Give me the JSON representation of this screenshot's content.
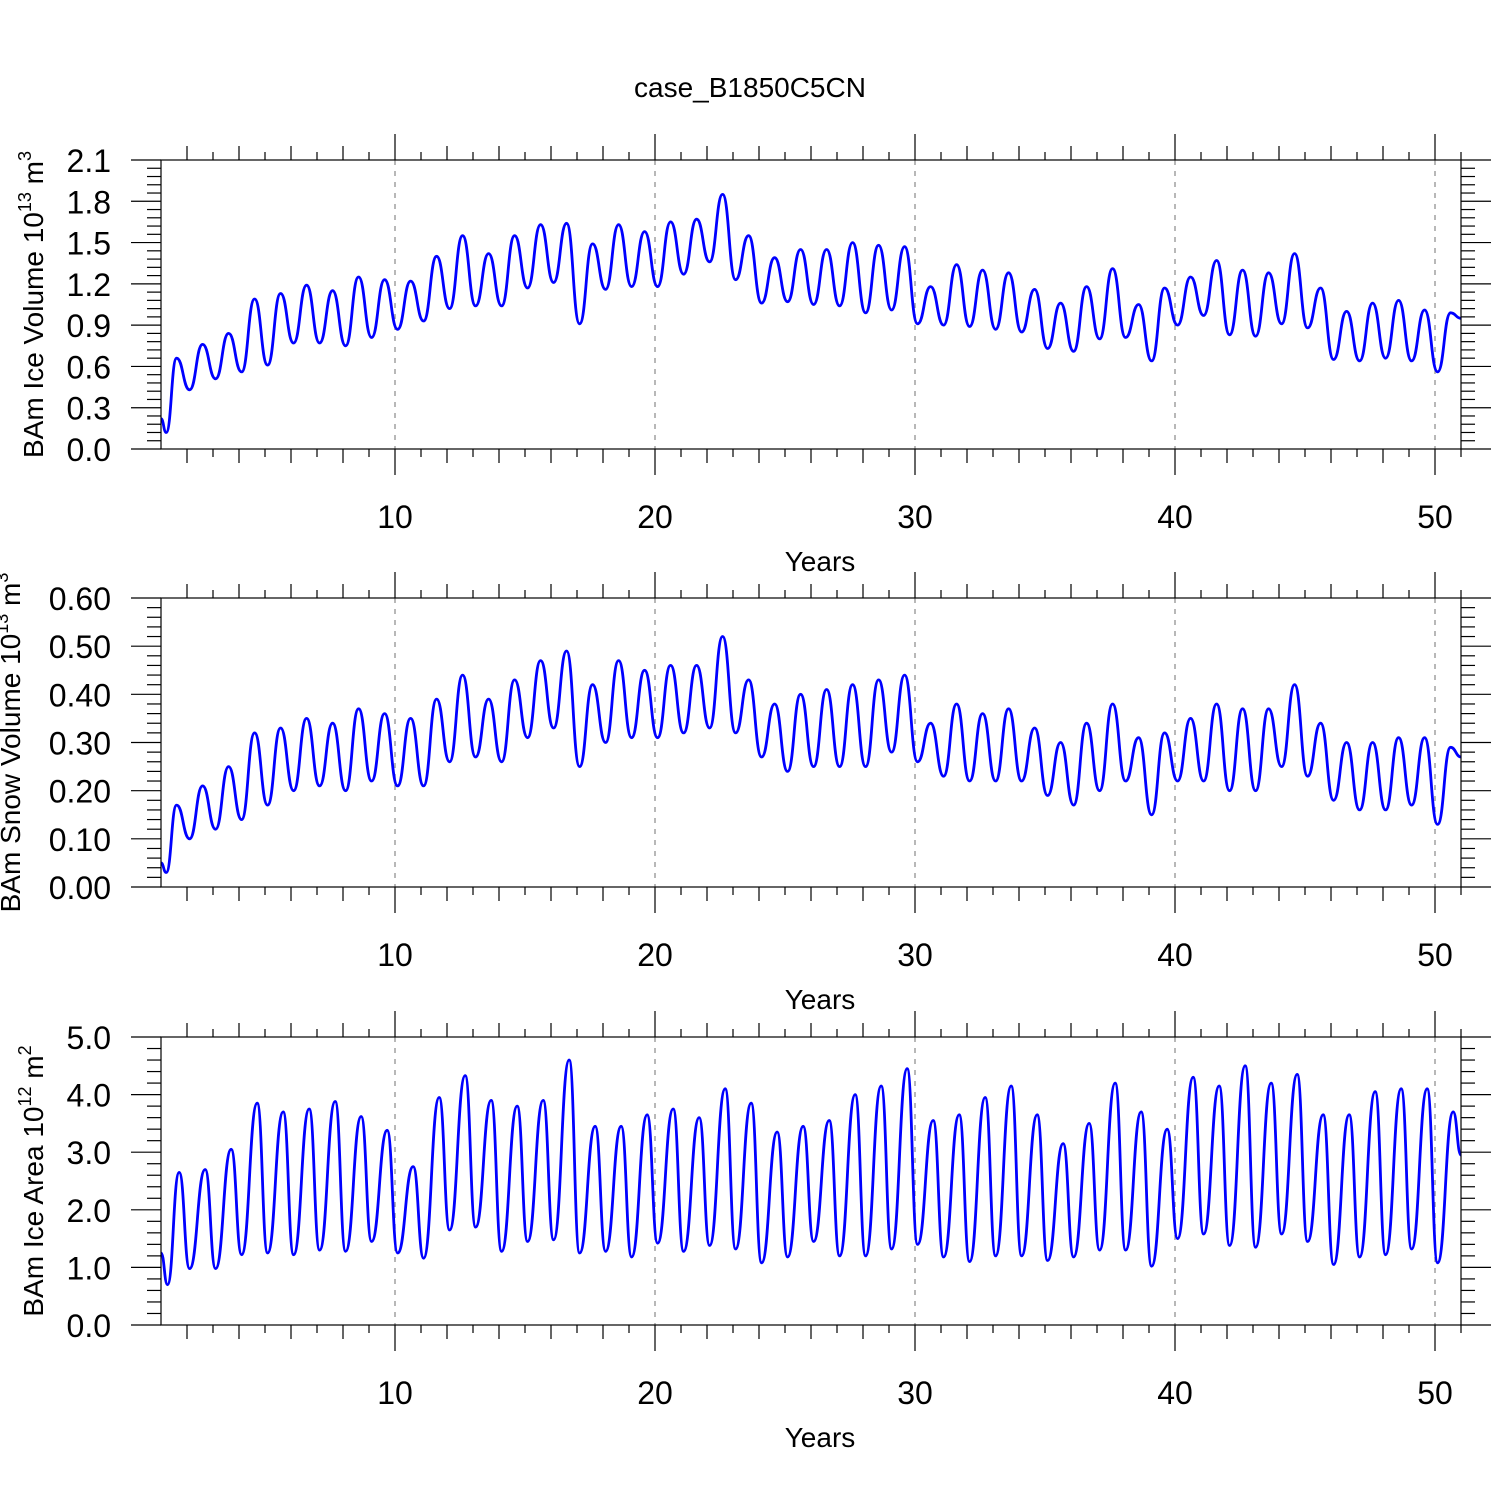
{
  "figure_title": "case_B1850C5CN",
  "chart_data": [
    {
      "type": "line",
      "title": "",
      "xlabel": "Years",
      "ylabel": "BAm Ice Volume 10",
      "ylabel_exp": "13",
      "ylabel_unit": " m",
      "ylabel_unit_exp": "3",
      "xlim": [
        1,
        51
      ],
      "ylim": [
        0.0,
        2.1
      ],
      "x_ticks": [
        10,
        20,
        30,
        40,
        50
      ],
      "x_tick_labels": [
        "10",
        "20",
        "30",
        "40",
        "50"
      ],
      "y_ticks": [
        0.0,
        0.3,
        0.6,
        0.9,
        1.2,
        1.5,
        1.8,
        2.1
      ],
      "y_tick_labels": [
        "0.0",
        "0.3",
        "0.6",
        "0.9",
        "1.2",
        "1.5",
        "1.8",
        "2.1"
      ],
      "grid_x": [
        10,
        20,
        30,
        40,
        50
      ],
      "series": [
        {
          "name": "BAm Ice Volume",
          "color": "#0000ff",
          "annual_peak_x": [
            1.6,
            2.6,
            3.6,
            4.6,
            5.6,
            6.6,
            7.6,
            8.6,
            9.6,
            10.6,
            11.6,
            12.6,
            13.6,
            14.6,
            15.6,
            16.6,
            17.6,
            18.6,
            19.6,
            20.6,
            21.6,
            22.6,
            23.6,
            24.6,
            25.6,
            26.6,
            27.6,
            28.6,
            29.6,
            30.6,
            31.6,
            32.6,
            33.6,
            34.6,
            35.6,
            36.6,
            37.6,
            38.6,
            39.6,
            40.6,
            41.6,
            42.6,
            43.6,
            44.6,
            45.6,
            46.6,
            47.6,
            48.6,
            49.6,
            50.6
          ],
          "annual_peak": [
            0.66,
            0.76,
            0.84,
            1.09,
            1.13,
            1.19,
            1.15,
            1.25,
            1.23,
            1.22,
            1.4,
            1.55,
            1.42,
            1.55,
            1.63,
            1.64,
            1.49,
            1.63,
            1.58,
            1.65,
            1.67,
            1.85,
            1.55,
            1.39,
            1.45,
            1.45,
            1.5,
            1.48,
            1.47,
            1.18,
            1.34,
            1.3,
            1.28,
            1.16,
            1.06,
            1.18,
            1.31,
            1.05,
            1.17,
            1.25,
            1.37,
            1.3,
            1.28,
            1.42,
            1.17,
            1.0,
            1.06,
            1.08,
            1.01,
            0.99
          ],
          "annual_trough_x": [
            1.2,
            2.1,
            3.1,
            4.1,
            5.1,
            6.1,
            7.1,
            8.1,
            9.1,
            10.1,
            11.1,
            12.1,
            13.1,
            14.1,
            15.1,
            16.1,
            17.1,
            18.1,
            19.1,
            20.1,
            21.1,
            22.1,
            23.1,
            24.1,
            25.1,
            26.1,
            27.1,
            28.1,
            29.1,
            30.1,
            31.1,
            32.1,
            33.1,
            34.1,
            35.1,
            36.1,
            37.1,
            38.1,
            39.1,
            40.1,
            41.1,
            42.1,
            43.1,
            44.1,
            45.1,
            46.1,
            47.1,
            48.1,
            49.1,
            50.1
          ],
          "annual_trough": [
            0.12,
            0.43,
            0.51,
            0.56,
            0.61,
            0.77,
            0.77,
            0.75,
            0.81,
            0.87,
            0.93,
            1.02,
            1.04,
            1.04,
            1.17,
            1.21,
            0.91,
            1.16,
            1.18,
            1.18,
            1.27,
            1.36,
            1.23,
            1.06,
            1.07,
            1.05,
            1.04,
            0.99,
            1.01,
            0.91,
            0.9,
            0.89,
            0.87,
            0.85,
            0.73,
            0.71,
            0.8,
            0.81,
            0.64,
            0.9,
            0.97,
            0.83,
            0.82,
            0.91,
            0.88,
            0.65,
            0.64,
            0.66,
            0.64,
            0.56
          ],
          "start_value": 0.22,
          "end_value": 0.95
        }
      ]
    },
    {
      "type": "line",
      "title": "",
      "xlabel": "Years",
      "ylabel": "BAm Snow Volume 10",
      "ylabel_exp": "13",
      "ylabel_unit": " m",
      "ylabel_unit_exp": "3",
      "xlim": [
        1,
        51
      ],
      "ylim": [
        0.0,
        0.6
      ],
      "x_ticks": [
        10,
        20,
        30,
        40,
        50
      ],
      "x_tick_labels": [
        "10",
        "20",
        "30",
        "40",
        "50"
      ],
      "y_ticks": [
        0.0,
        0.1,
        0.2,
        0.3,
        0.4,
        0.5,
        0.6
      ],
      "y_tick_labels": [
        "0.00",
        "0.10",
        "0.20",
        "0.30",
        "0.40",
        "0.50",
        "0.60"
      ],
      "grid_x": [
        10,
        20,
        30,
        40,
        50
      ],
      "series": [
        {
          "name": "BAm Snow Volume",
          "color": "#0000ff",
          "annual_peak_x": [
            1.6,
            2.6,
            3.6,
            4.6,
            5.6,
            6.6,
            7.6,
            8.6,
            9.6,
            10.6,
            11.6,
            12.6,
            13.6,
            14.6,
            15.6,
            16.6,
            17.6,
            18.6,
            19.6,
            20.6,
            21.6,
            22.6,
            23.6,
            24.6,
            25.6,
            26.6,
            27.6,
            28.6,
            29.6,
            30.6,
            31.6,
            32.6,
            33.6,
            34.6,
            35.6,
            36.6,
            37.6,
            38.6,
            39.6,
            40.6,
            41.6,
            42.6,
            43.6,
            44.6,
            45.6,
            46.6,
            47.6,
            48.6,
            49.6,
            50.6
          ],
          "annual_peak": [
            0.17,
            0.21,
            0.25,
            0.32,
            0.33,
            0.35,
            0.34,
            0.37,
            0.36,
            0.35,
            0.39,
            0.44,
            0.39,
            0.43,
            0.47,
            0.49,
            0.42,
            0.47,
            0.45,
            0.46,
            0.46,
            0.52,
            0.43,
            0.38,
            0.4,
            0.41,
            0.42,
            0.43,
            0.44,
            0.34,
            0.38,
            0.36,
            0.37,
            0.33,
            0.3,
            0.34,
            0.38,
            0.31,
            0.32,
            0.35,
            0.38,
            0.37,
            0.37,
            0.42,
            0.34,
            0.3,
            0.3,
            0.31,
            0.31,
            0.29
          ],
          "annual_trough_x": [
            1.2,
            2.1,
            3.1,
            4.1,
            5.1,
            6.1,
            7.1,
            8.1,
            9.1,
            10.1,
            11.1,
            12.1,
            13.1,
            14.1,
            15.1,
            16.1,
            17.1,
            18.1,
            19.1,
            20.1,
            21.1,
            22.1,
            23.1,
            24.1,
            25.1,
            26.1,
            27.1,
            28.1,
            29.1,
            30.1,
            31.1,
            32.1,
            33.1,
            34.1,
            35.1,
            36.1,
            37.1,
            38.1,
            39.1,
            40.1,
            41.1,
            42.1,
            43.1,
            44.1,
            45.1,
            46.1,
            47.1,
            48.1,
            49.1,
            50.1
          ],
          "annual_trough": [
            0.03,
            0.1,
            0.12,
            0.14,
            0.17,
            0.2,
            0.21,
            0.2,
            0.22,
            0.21,
            0.21,
            0.26,
            0.27,
            0.26,
            0.31,
            0.33,
            0.25,
            0.3,
            0.31,
            0.31,
            0.32,
            0.33,
            0.32,
            0.27,
            0.24,
            0.25,
            0.25,
            0.25,
            0.28,
            0.26,
            0.23,
            0.22,
            0.22,
            0.22,
            0.19,
            0.17,
            0.2,
            0.22,
            0.15,
            0.22,
            0.22,
            0.2,
            0.2,
            0.25,
            0.23,
            0.18,
            0.16,
            0.16,
            0.17,
            0.13
          ],
          "start_value": 0.05,
          "end_value": 0.27
        }
      ]
    },
    {
      "type": "line",
      "title": "",
      "xlabel": "Years",
      "ylabel": "BAm Ice Area 10",
      "ylabel_exp": "12",
      "ylabel_unit": " m",
      "ylabel_unit_exp": "2",
      "xlim": [
        1,
        51
      ],
      "ylim": [
        0.0,
        5.0
      ],
      "x_ticks": [
        10,
        20,
        30,
        40,
        50
      ],
      "x_tick_labels": [
        "10",
        "20",
        "30",
        "40",
        "50"
      ],
      "y_ticks": [
        0.0,
        1.0,
        2.0,
        3.0,
        4.0,
        5.0
      ],
      "y_tick_labels": [
        "0.0",
        "1.0",
        "2.0",
        "3.0",
        "4.0",
        "5.0"
      ],
      "grid_x": [
        10,
        20,
        30,
        40,
        50
      ],
      "series": [
        {
          "name": "BAm Ice Area",
          "color": "#0000ff",
          "annual_peak_x": [
            1.7,
            2.7,
            3.7,
            4.7,
            5.7,
            6.7,
            7.7,
            8.7,
            9.7,
            10.7,
            11.7,
            12.7,
            13.7,
            14.7,
            15.7,
            16.7,
            17.7,
            18.7,
            19.7,
            20.7,
            21.7,
            22.7,
            23.7,
            24.7,
            25.7,
            26.7,
            27.7,
            28.7,
            29.7,
            30.7,
            31.7,
            32.7,
            33.7,
            34.7,
            35.7,
            36.7,
            37.7,
            38.7,
            39.7,
            40.7,
            41.7,
            42.7,
            43.7,
            44.7,
            45.7,
            46.7,
            47.7,
            48.7,
            49.7,
            50.7
          ],
          "annual_peak": [
            2.65,
            2.7,
            3.05,
            3.85,
            3.7,
            3.75,
            3.88,
            3.62,
            3.38,
            2.75,
            3.95,
            4.33,
            3.9,
            3.8,
            3.9,
            4.6,
            3.45,
            3.45,
            3.65,
            3.75,
            3.6,
            4.1,
            3.85,
            3.35,
            3.45,
            3.55,
            4.0,
            4.15,
            4.45,
            3.55,
            3.65,
            3.95,
            4.15,
            3.65,
            3.15,
            3.5,
            4.2,
            3.7,
            3.4,
            4.3,
            4.15,
            4.5,
            4.2,
            4.35,
            3.65,
            3.65,
            4.05,
            4.1,
            4.1,
            3.7
          ],
          "annual_trough_x": [
            1.25,
            2.1,
            3.1,
            4.1,
            5.1,
            6.1,
            7.1,
            8.1,
            9.1,
            10.1,
            11.1,
            12.1,
            13.1,
            14.1,
            15.1,
            16.1,
            17.1,
            18.1,
            19.1,
            20.1,
            21.1,
            22.1,
            23.1,
            24.1,
            25.1,
            26.1,
            27.1,
            28.1,
            29.1,
            30.1,
            31.1,
            32.1,
            33.1,
            34.1,
            35.1,
            36.1,
            37.1,
            38.1,
            39.1,
            40.1,
            41.1,
            42.1,
            43.1,
            44.1,
            45.1,
            46.1,
            47.1,
            48.1,
            49.1,
            50.1
          ],
          "annual_trough": [
            0.7,
            0.98,
            0.98,
            1.22,
            1.25,
            1.22,
            1.3,
            1.28,
            1.45,
            1.25,
            1.16,
            1.65,
            1.7,
            1.28,
            1.45,
            1.48,
            1.25,
            1.28,
            1.18,
            1.42,
            1.28,
            1.38,
            1.32,
            1.08,
            1.18,
            1.45,
            1.2,
            1.2,
            1.32,
            1.4,
            1.18,
            1.1,
            1.2,
            1.2,
            1.12,
            1.18,
            1.3,
            1.3,
            1.02,
            1.5,
            1.58,
            1.38,
            1.35,
            1.58,
            1.45,
            1.05,
            1.18,
            1.22,
            1.32,
            1.08
          ],
          "start_value": 1.25,
          "end_value": 2.95
        }
      ]
    }
  ]
}
